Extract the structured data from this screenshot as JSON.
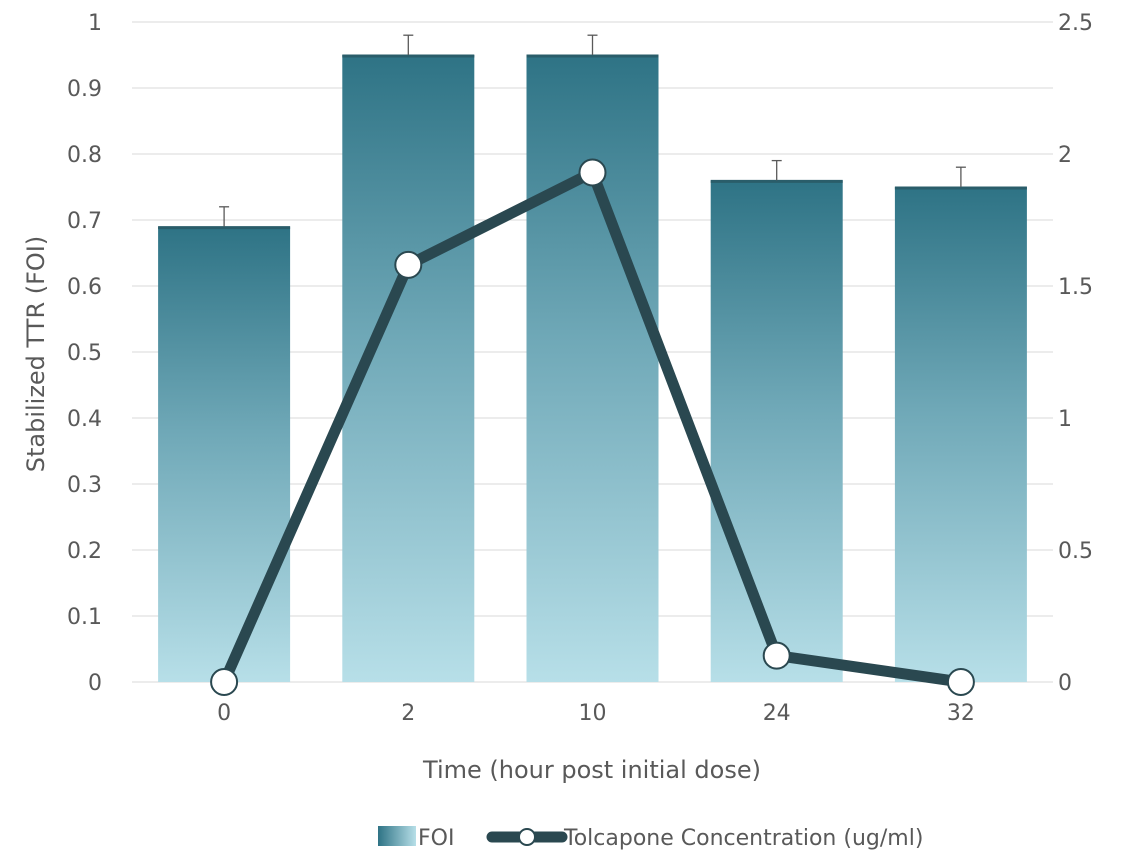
{
  "chart_data": {
    "type": "bar",
    "categories": [
      "0",
      "2",
      "10",
      "24",
      "32"
    ],
    "xlabel": "Time (hour post initial dose)",
    "ylabel": "Stabilized TTR (FOI)",
    "ylim": [
      0,
      1
    ],
    "y_ticks": [
      "0",
      "0.1",
      "0.2",
      "0.3",
      "0.4",
      "0.5",
      "0.6",
      "0.7",
      "0.8",
      "0.9",
      "1"
    ],
    "y2lim": [
      0,
      2.5
    ],
    "y2_ticks": [
      "0",
      "0.5",
      "1",
      "1.5",
      "2",
      "2.5"
    ],
    "grid": true,
    "legend_position": "bottom",
    "series": [
      {
        "name": "FOI",
        "type": "bar",
        "axis": "left",
        "values": [
          0.69,
          0.95,
          0.95,
          0.76,
          0.75
        ],
        "error": [
          0.03,
          0.03,
          0.03,
          0.03,
          0.03
        ],
        "color_top": "#2e7385",
        "color_bottom": "#b3dde6"
      },
      {
        "name": "Tolcapone Concentration (ug/ml)",
        "type": "line",
        "axis": "right",
        "values": [
          0,
          1.58,
          1.93,
          0.1,
          0
        ],
        "color": "#2a4850",
        "marker_fill": "#ffffff"
      }
    ]
  }
}
